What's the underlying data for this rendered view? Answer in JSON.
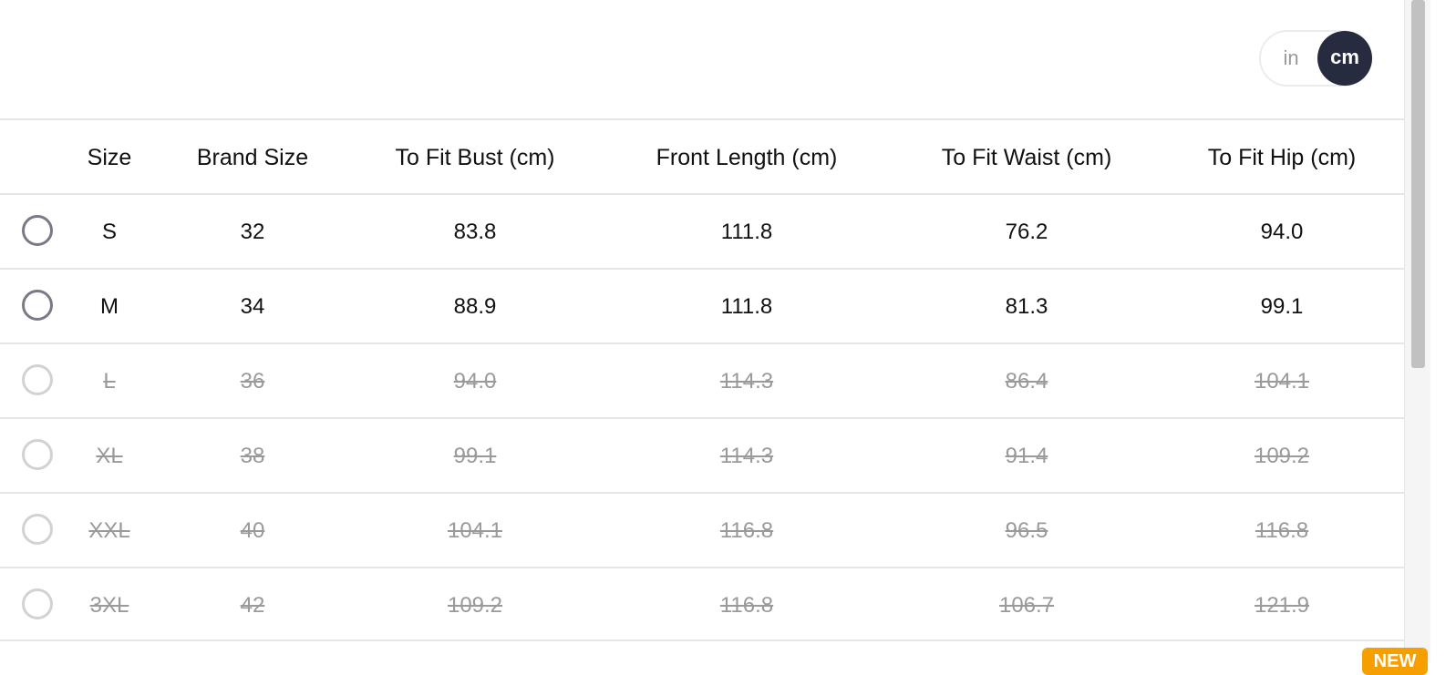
{
  "unit_toggle": {
    "options": [
      "in",
      "cm"
    ],
    "selected": "cm"
  },
  "table": {
    "headers": [
      "Size",
      "Brand Size",
      "To Fit Bust (cm)",
      "Front Length (cm)",
      "To Fit Waist (cm)",
      "To Fit Hip (cm)"
    ],
    "rows": [
      {
        "available": true,
        "cells": [
          "S",
          "32",
          "83.8",
          "111.8",
          "76.2",
          "94.0"
        ]
      },
      {
        "available": true,
        "cells": [
          "M",
          "34",
          "88.9",
          "111.8",
          "81.3",
          "99.1"
        ]
      },
      {
        "available": false,
        "cells": [
          "L",
          "36",
          "94.0",
          "114.3",
          "86.4",
          "104.1"
        ]
      },
      {
        "available": false,
        "cells": [
          "XL",
          "38",
          "99.1",
          "114.3",
          "91.4",
          "109.2"
        ]
      },
      {
        "available": false,
        "cells": [
          "XXL",
          "40",
          "104.1",
          "116.8",
          "96.5",
          "116.8"
        ]
      },
      {
        "available": false,
        "cells": [
          "3XL",
          "42",
          "109.2",
          "116.8",
          "106.7",
          "121.9"
        ]
      }
    ]
  },
  "badge": "NEW",
  "colors": {
    "toggle_active": "#272b40",
    "badge": "#f5a000"
  }
}
